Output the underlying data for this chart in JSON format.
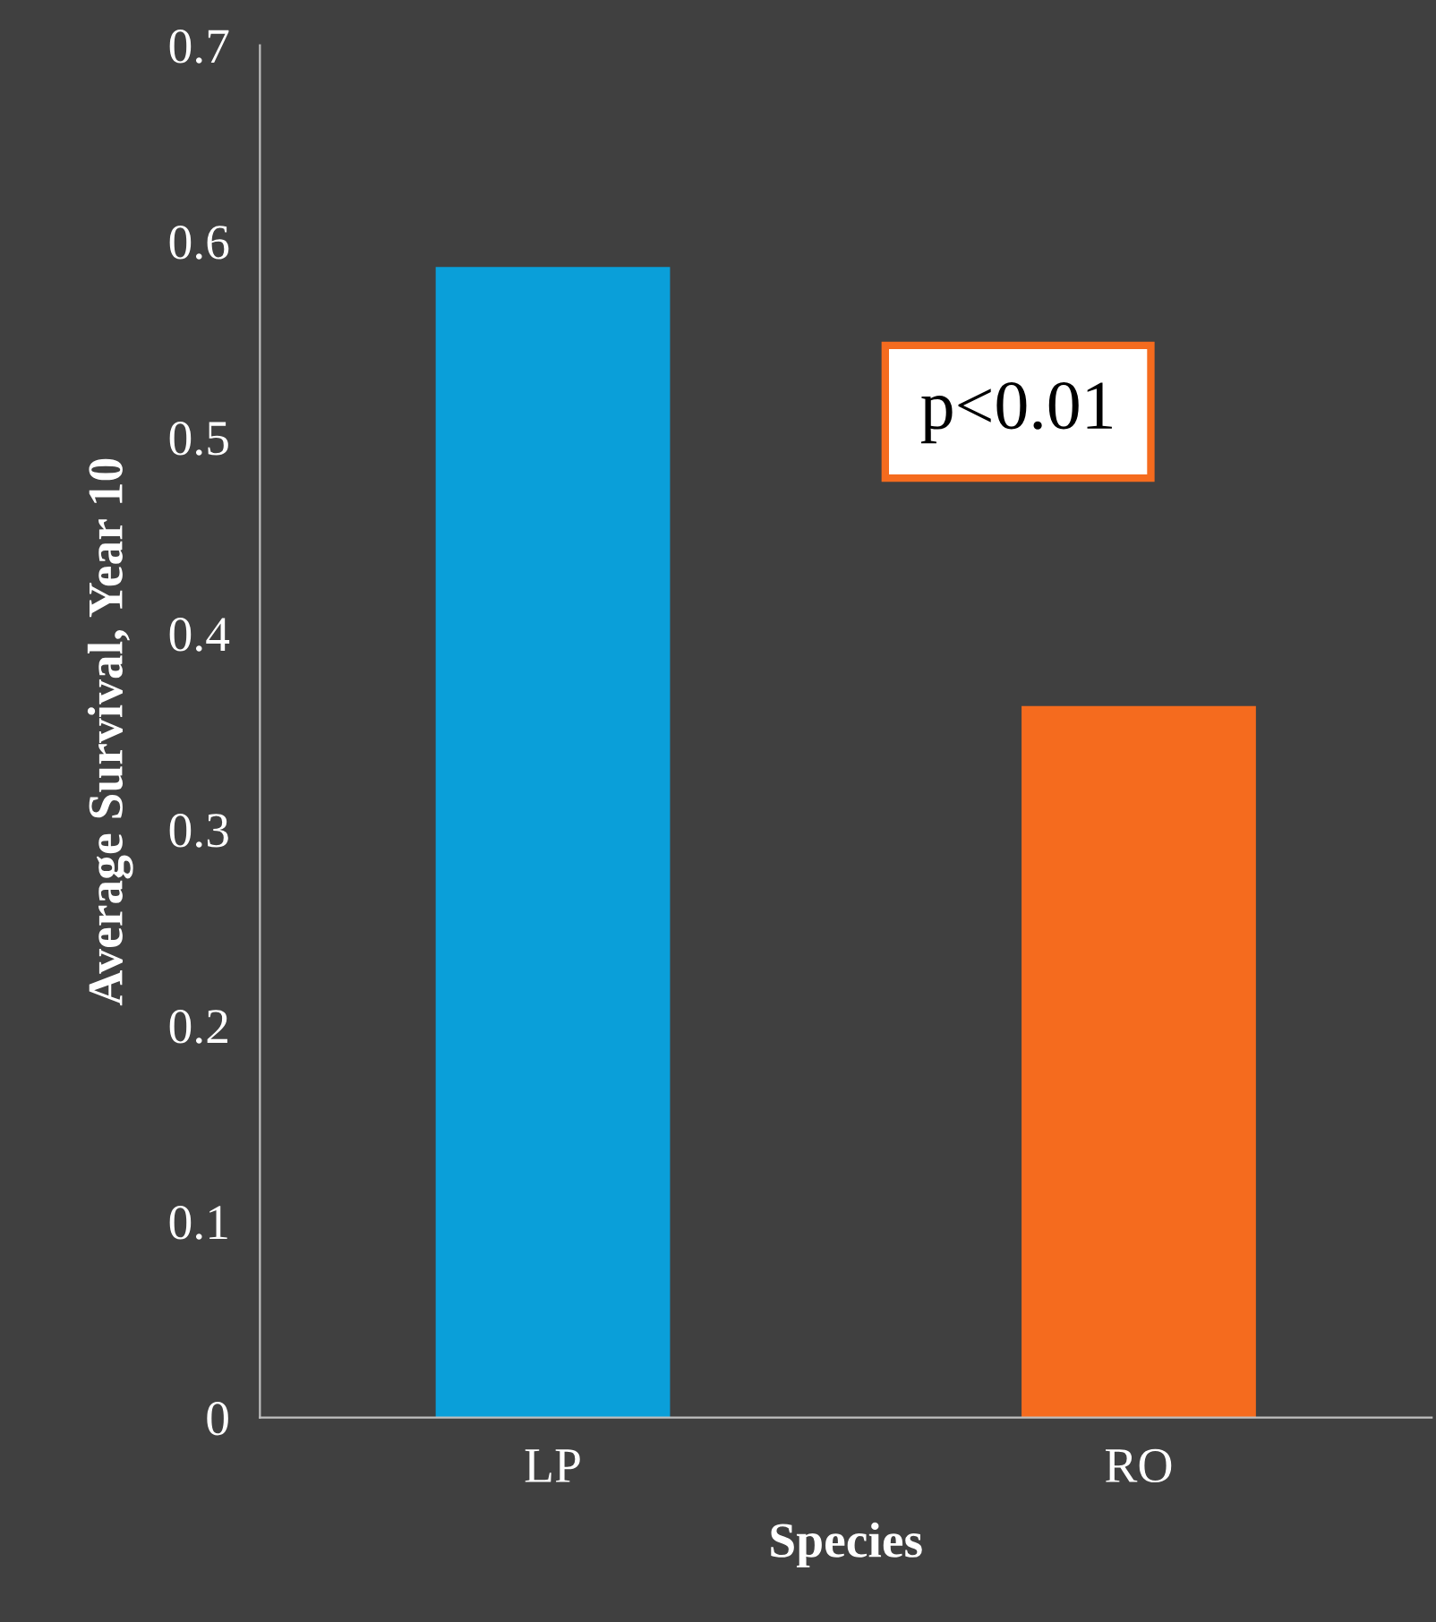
{
  "chart_data": {
    "type": "bar",
    "xlabel": "Species",
    "ylabel": "Average Survival, Year 10",
    "categories": [
      "LP",
      "RO"
    ],
    "values": [
      0.587,
      0.363
    ],
    "colors": [
      "#0a9fd9",
      "#f56b1e"
    ],
    "ylim": [
      0,
      0.7
    ],
    "yticks": [
      {
        "value": 0,
        "label": "0"
      },
      0.1,
      0.2,
      0.3,
      0.4,
      0.5,
      0.6,
      0.7
    ],
    "grid": false,
    "legend": false,
    "annotations": [
      "p<0.01"
    ]
  }
}
